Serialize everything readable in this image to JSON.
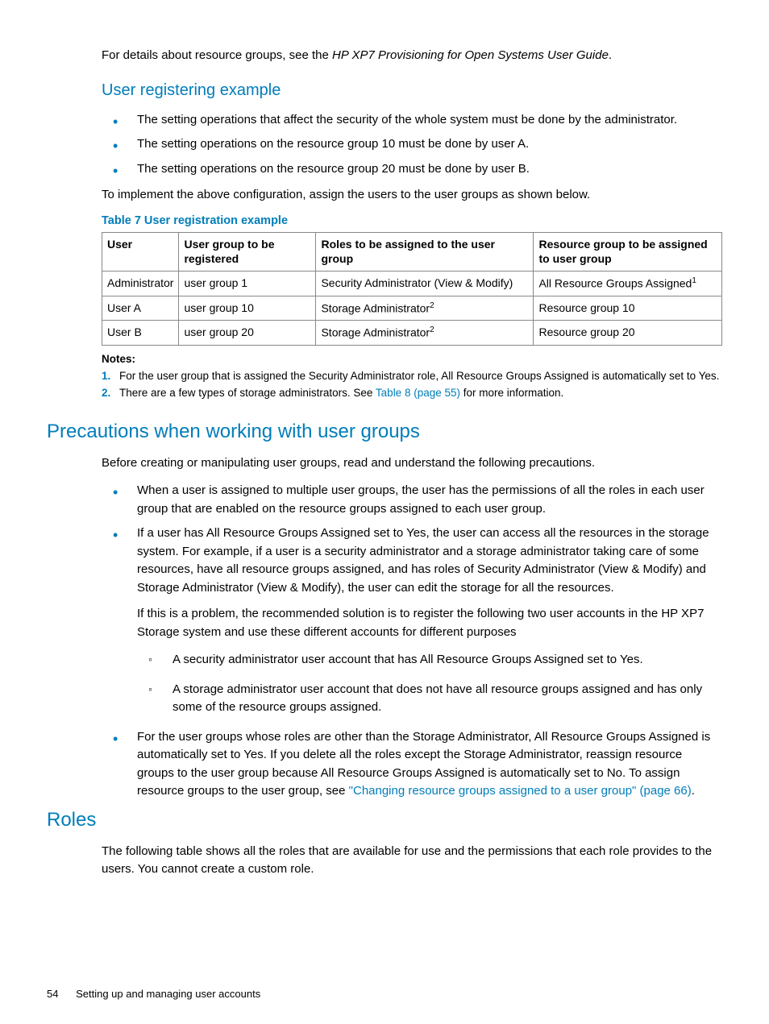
{
  "intro": {
    "prefix": "For details about resource groups, see the ",
    "italic": "HP XP7 Provisioning for Open Systems User Guide",
    "suffix": "."
  },
  "section1": {
    "title": "User registering example",
    "bullets": [
      "The setting operations that affect the security of the whole system must be done by the administrator.",
      "The setting operations on the resource group 10 must be done by user A.",
      "The setting operations on the resource group 20 must be done by user B."
    ],
    "after_bullets": "To implement the above configuration, assign the users to the user groups as shown below."
  },
  "table": {
    "caption": "Table 7 User registration example",
    "headers": [
      "User",
      "User group to be registered",
      "Roles to be assigned to the user group",
      "Resource group to be assigned to user group"
    ],
    "rows": [
      {
        "user": "Administrator",
        "group": "user group 1",
        "roles": "Security Administrator (View & Modify)",
        "rg": "All Resource Groups Assigned",
        "rg_sup": "1"
      },
      {
        "user": "User A",
        "group": "user group 10",
        "roles": "Storage Administrator",
        "roles_sup": "2",
        "rg": "Resource group 10"
      },
      {
        "user": "User B",
        "group": "user group 20",
        "roles": "Storage Administrator",
        "roles_sup": "2",
        "rg": "Resource group 20"
      }
    ]
  },
  "notes": {
    "title": "Notes:",
    "items": [
      {
        "num": "1.",
        "text": "For the user group that is assigned the Security Administrator role, All Resource Groups Assigned is automatically set to Yes."
      },
      {
        "num": "2.",
        "text_before": "There are a few types of storage administrators. See ",
        "link": "Table 8 (page 55)",
        "text_after": " for more information."
      }
    ]
  },
  "section2": {
    "title": "Precautions when working with user groups",
    "intro": "Before creating or manipulating user groups, read and understand the following precautions.",
    "bullets": [
      {
        "paras": [
          "When a user is assigned to multiple user groups, the user has the permissions of all the roles in each user group that are enabled on the resource groups assigned to each user group."
        ]
      },
      {
        "paras": [
          "If a user has All Resource Groups Assigned set to Yes, the user can access all the resources in the storage system. For example, if a user is a security administrator and a storage administrator taking care of some resources, have all resource groups assigned, and has roles of Security Administrator (View & Modify) and Storage Administrator (View & Modify), the user can edit the storage for all the resources.",
          "If this is a problem, the recommended solution is to register the following two user accounts in the HP XP7 Storage system and use these different accounts for different purposes"
        ],
        "sub": [
          "A security administrator user account that has All Resource Groups Assigned set to Yes.",
          "A storage administrator user account that does not have all resource groups assigned and has only some of the resource groups assigned."
        ]
      },
      {
        "paras_with_link": {
          "before": "For the user groups whose roles are other than the Storage Administrator, All Resource Groups Assigned is automatically set to Yes. If you delete all the roles except the Storage Administrator, reassign resource groups to the user group because All Resource Groups Assigned is automatically set to No. To assign resource groups to the user group, see ",
          "link": "\"Changing resource groups assigned to a user group\" (page 66)",
          "after": "."
        }
      }
    ]
  },
  "section3": {
    "title": "Roles",
    "text": "The following table shows all the roles that are available for use and the permissions that each role provides to the users. You cannot create a custom role."
  },
  "footer": {
    "page": "54",
    "chapter": "Setting up and managing user accounts"
  }
}
